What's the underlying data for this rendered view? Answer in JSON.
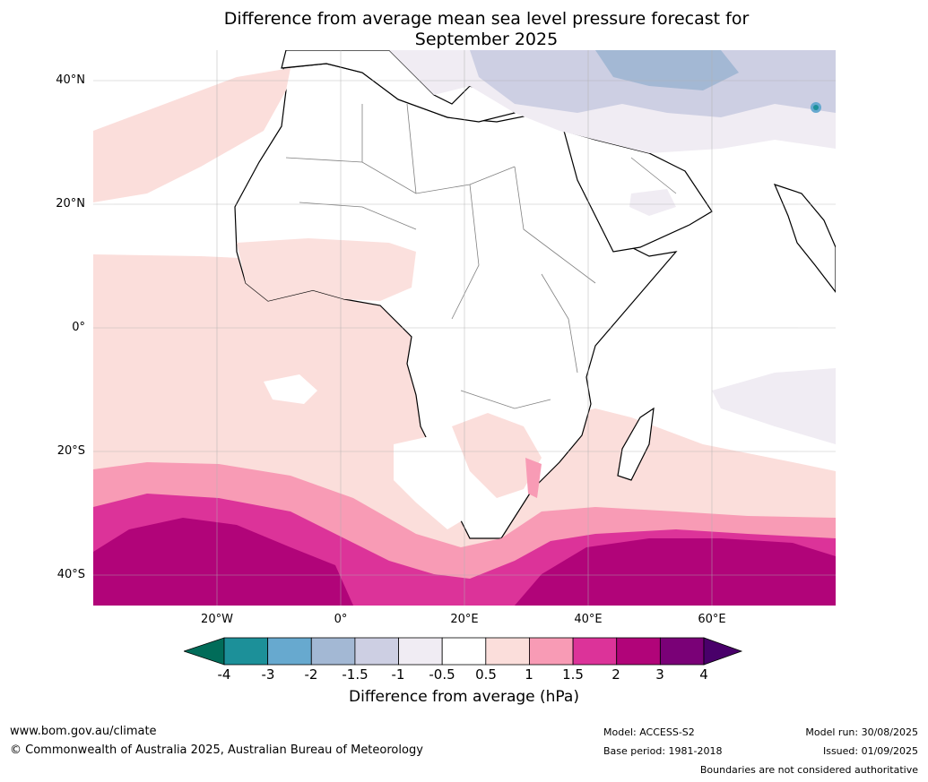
{
  "title": {
    "line1": "Difference from average mean sea level pressure forecast for",
    "line2": "September 2025"
  },
  "map": {
    "lat_labels": [
      "40°N",
      "20°N",
      "0°",
      "20°S",
      "40°S"
    ],
    "lon_labels": [
      "20°W",
      "0°",
      "20°E",
      "40°E",
      "60°E"
    ],
    "colors": {
      "ocean_light_positive": "#fbdedb",
      "medium_positive": "#f89bb5",
      "strong_positive": "#dc3399",
      "very_strong_positive": "#b10479",
      "light_negative": "#f0ecf3",
      "medium_negative": "#cdcfe3",
      "stronger_negative": "#a3b8d4",
      "land_line": "#000000",
      "border_line": "#808080"
    }
  },
  "colorbar": {
    "ticks": [
      "-4",
      "-3",
      "-2",
      "-1.5",
      "-1",
      "-0.5",
      "0.5",
      "1",
      "1.5",
      "2",
      "3",
      "4"
    ],
    "bins": [
      "#1c9099",
      "#67a9cf",
      "#a3b8d4",
      "#cdcfe3",
      "#f0ecf3",
      "#ffffff",
      "#fbdedb",
      "#f89bb5",
      "#dc3399",
      "#b10479",
      "#7a0177"
    ],
    "under_color": "#016c59",
    "over_color": "#49006a",
    "label": "Difference from average (hPa)"
  },
  "footer": {
    "website": "www.bom.gov.au/climate",
    "copyright": "© Commonwealth of Australia 2025, Australian Bureau of Meteorology",
    "model": "Model: ACCESS-S2",
    "base_period": "Base period: 1981-2018",
    "model_run": "Model run: 30/08/2025",
    "issued": "Issued: 01/09/2025",
    "disclaimer": "Boundaries are not considered authoritative"
  }
}
